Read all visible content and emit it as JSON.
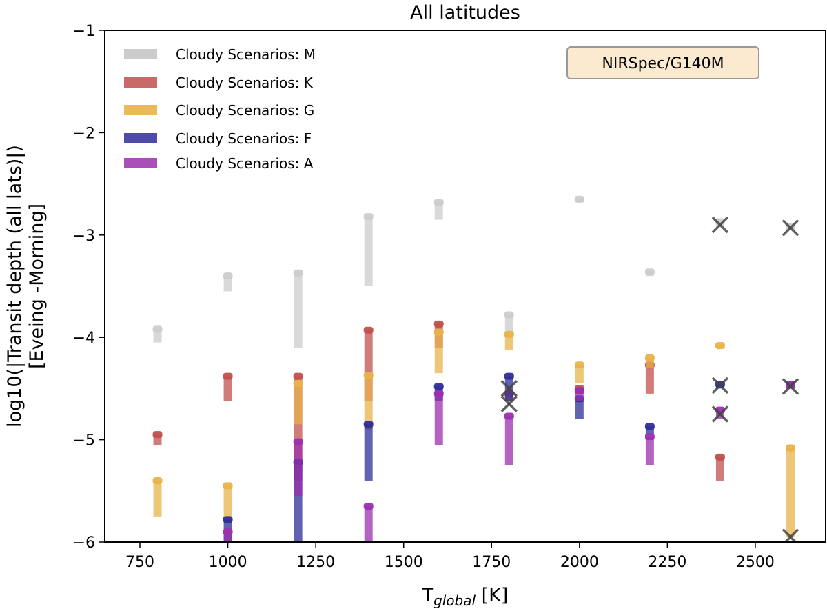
{
  "chart_data": {
    "type": "scatter",
    "title": "All latitudes",
    "xlabel_main": "T",
    "xlabel_sub": "global",
    "xlabel_unit": " [K]",
    "ylabel_line1": "log10(|Transit depth (all lats)|)",
    "ylabel_line2": "[Eveing -Morning]",
    "xlim": [
      650,
      2700
    ],
    "ylim": [
      -6,
      -1
    ],
    "xticks": [
      750,
      1000,
      1250,
      1500,
      1750,
      2000,
      2250,
      2500
    ],
    "yticks": [
      -6,
      -5,
      -4,
      -3,
      -2,
      -1
    ],
    "ytick_labels": [
      "−6",
      "−5",
      "−4",
      "−3",
      "−2",
      "−1"
    ],
    "annotation": "NIRSpec/G140M",
    "legend": [
      {
        "name": "Cloudy Scenarios: M",
        "color": "#cccccc"
      },
      {
        "name": "Cloudy Scenarios: K",
        "color": "#c0504d"
      },
      {
        "name": "Cloudy Scenarios: G",
        "color": "#e8b34a"
      },
      {
        "name": "Cloudy Scenarios: F",
        "color": "#2e2e9a"
      },
      {
        "name": "Cloudy Scenarios: A",
        "color": "#9b2fae"
      }
    ],
    "series": [
      {
        "name": "M",
        "color": "#cccccc",
        "segments": [
          {
            "x": 800,
            "y1": -3.92,
            "y2": -4.05
          },
          {
            "x": 1000,
            "y1": -3.4,
            "y2": -3.55
          },
          {
            "x": 1200,
            "y1": -3.37,
            "y2": -4.1
          },
          {
            "x": 1400,
            "y1": -2.82,
            "y2": -3.5
          },
          {
            "x": 1600,
            "y1": -2.68,
            "y2": -2.85
          },
          {
            "x": 1800,
            "y1": -3.78,
            "y2": -4.0
          },
          {
            "x": 2000,
            "y1": -2.65,
            "y2": -2.68
          },
          {
            "x": 2200,
            "y1": -3.36,
            "y2": -3.4
          },
          {
            "x": 2400,
            "y1": -2.87,
            "y2": -2.92
          },
          {
            "x": 2600,
            "y1": -2.92,
            "y2": -2.95
          }
        ]
      },
      {
        "name": "K",
        "color": "#c0504d",
        "segments": [
          {
            "x": 800,
            "y1": -4.95,
            "y2": -5.05
          },
          {
            "x": 1000,
            "y1": -4.38,
            "y2": -4.62
          },
          {
            "x": 1200,
            "y1": -4.38,
            "y2": -5.4
          },
          {
            "x": 1400,
            "y1": -3.93,
            "y2": -4.62
          },
          {
            "x": 1600,
            "y1": -3.87,
            "y2": -4.1
          },
          {
            "x": 1800,
            "y1": -4.55,
            "y2": -4.62
          },
          {
            "x": 2000,
            "y1": -4.5,
            "y2": -4.55
          },
          {
            "x": 2200,
            "y1": -4.27,
            "y2": -4.55
          },
          {
            "x": 2400,
            "y1": -5.17,
            "y2": -5.4
          }
        ]
      },
      {
        "name": "G",
        "color": "#e8b34a",
        "segments": [
          {
            "x": 800,
            "y1": -5.4,
            "y2": -5.75
          },
          {
            "x": 1000,
            "y1": -5.45,
            "y2": -5.8
          },
          {
            "x": 1200,
            "y1": -4.45,
            "y2": -4.85
          },
          {
            "x": 1400,
            "y1": -4.37,
            "y2": -4.9
          },
          {
            "x": 1600,
            "y1": -3.95,
            "y2": -4.35
          },
          {
            "x": 1800,
            "y1": -3.97,
            "y2": -4.12
          },
          {
            "x": 2000,
            "y1": -4.27,
            "y2": -4.45
          },
          {
            "x": 2200,
            "y1": -4.2,
            "y2": -4.3
          },
          {
            "x": 2400,
            "y1": -4.08,
            "y2": -4.1
          },
          {
            "x": 2600,
            "y1": -5.08,
            "y2": -5.95
          }
        ]
      },
      {
        "name": "F",
        "color": "#2e2e9a",
        "segments": [
          {
            "x": 1000,
            "y1": -5.78,
            "y2": -6.0
          },
          {
            "x": 1200,
            "y1": -5.22,
            "y2": -6.0
          },
          {
            "x": 1400,
            "y1": -4.85,
            "y2": -5.4
          },
          {
            "x": 1600,
            "y1": -4.48,
            "y2": -4.62
          },
          {
            "x": 1800,
            "y1": -4.38,
            "y2": -4.62
          },
          {
            "x": 2000,
            "y1": -4.6,
            "y2": -4.8
          },
          {
            "x": 2200,
            "y1": -4.87,
            "y2": -4.95
          },
          {
            "x": 2400,
            "y1": -4.46,
            "y2": -4.5
          },
          {
            "x": 2600,
            "y1": -4.46,
            "y2": -4.5
          }
        ]
      },
      {
        "name": "A",
        "color": "#9b2fae",
        "segments": [
          {
            "x": 1000,
            "y1": -5.9,
            "y2": -6.0
          },
          {
            "x": 1200,
            "y1": -5.02,
            "y2": -5.55
          },
          {
            "x": 1400,
            "y1": -5.65,
            "y2": -6.0
          },
          {
            "x": 1600,
            "y1": -4.55,
            "y2": -5.05
          },
          {
            "x": 1800,
            "y1": -4.77,
            "y2": -5.25
          },
          {
            "x": 2000,
            "y1": -4.52,
            "y2": -4.62
          },
          {
            "x": 2200,
            "y1": -4.97,
            "y2": -5.25
          },
          {
            "x": 2400,
            "y1": -4.71,
            "y2": -4.8
          },
          {
            "x": 2600,
            "y1": -4.46,
            "y2": -4.5
          }
        ]
      }
    ],
    "x_markers": [
      {
        "x": 1800,
        "y": -4.5
      },
      {
        "x": 1800,
        "y": -4.65
      },
      {
        "x": 2400,
        "y": -2.9
      },
      {
        "x": 2400,
        "y": -4.47
      },
      {
        "x": 2400,
        "y": -4.75
      },
      {
        "x": 2600,
        "y": -2.93
      },
      {
        "x": 2600,
        "y": -4.48
      },
      {
        "x": 2600,
        "y": -5.95
      }
    ]
  }
}
